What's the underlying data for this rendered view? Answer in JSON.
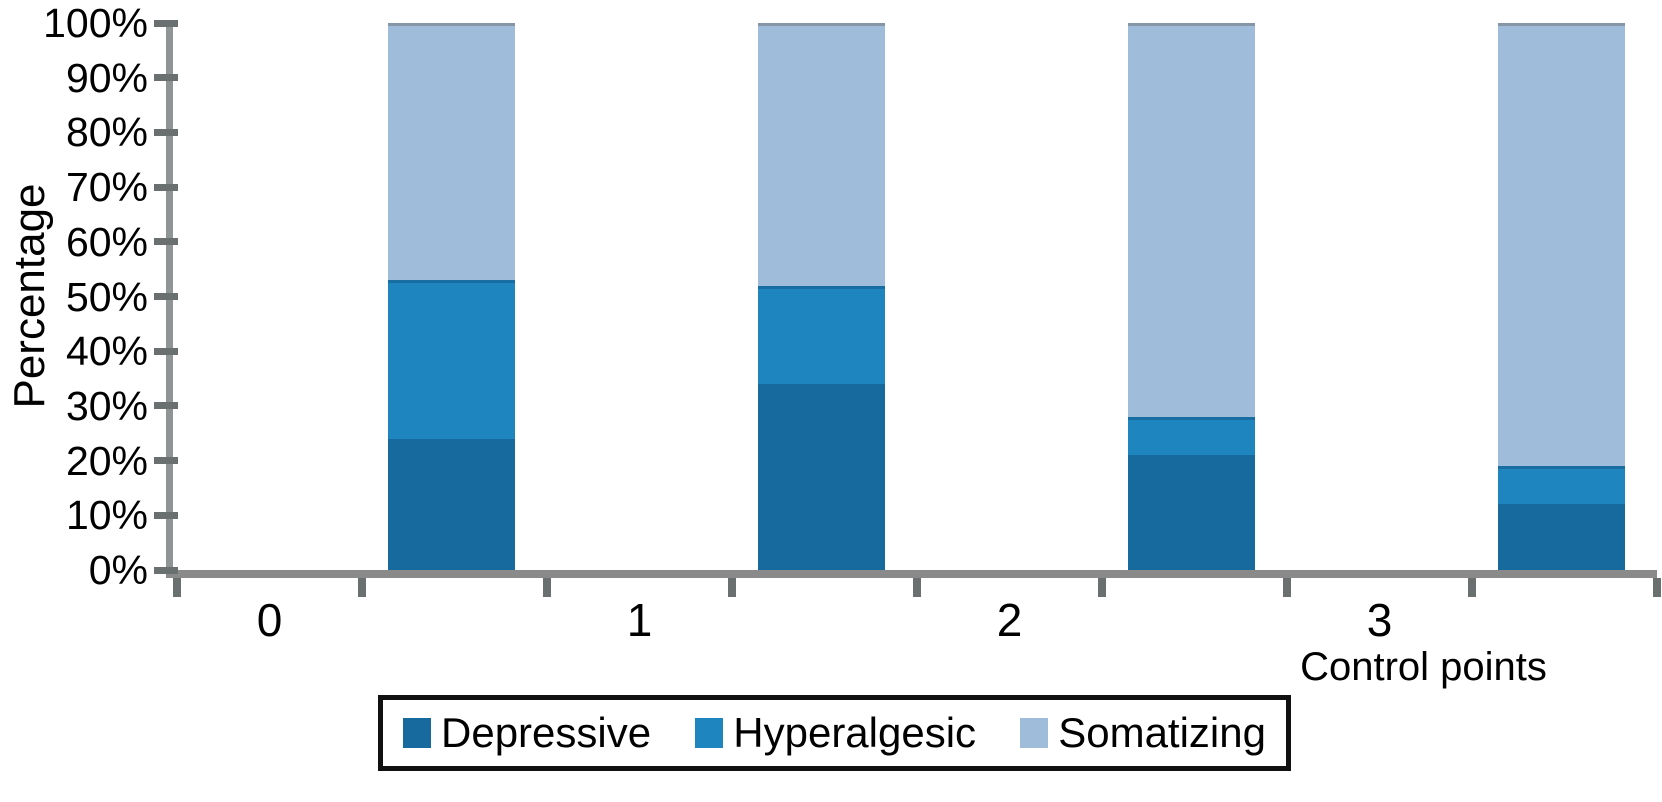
{
  "chart_data": {
    "type": "bar",
    "subtype": "stacked-100-percent",
    "title": "",
    "xlabel": "Control points",
    "ylabel": "Percentage",
    "categories": [
      "0",
      "1",
      "2",
      "3"
    ],
    "series": [
      {
        "name": "Depressive",
        "color": "#176A9D",
        "values": [
          24,
          34,
          21,
          12
        ]
      },
      {
        "name": "Hyperalgesic",
        "color": "#1E85BE",
        "values": [
          29,
          18,
          7,
          7
        ]
      },
      {
        "name": "Somatizing",
        "color": "#9FBCDB",
        "values": [
          47,
          48,
          72,
          81
        ]
      }
    ],
    "y_ticks": [
      "0%",
      "10%",
      "20%",
      "30%",
      "40%",
      "50%",
      "60%",
      "70%",
      "80%",
      "90%",
      "100%"
    ],
    "ylim": [
      0,
      100
    ],
    "grid": false,
    "legend_position": "bottom",
    "axis_color": "#8A8A8A",
    "tick_color": "#6A7070"
  }
}
